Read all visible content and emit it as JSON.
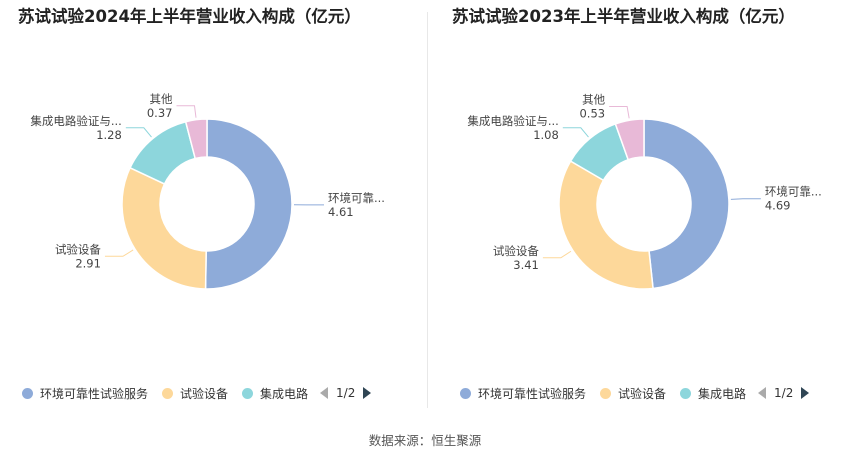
{
  "source": "数据来源：恒生聚源",
  "chart_data": [
    {
      "type": "pie",
      "variant": "donut",
      "title": "苏试试验2024年上半年营业收入构成（亿元）",
      "slices": [
        {
          "label": "环境可靠...",
          "value": 4.61,
          "color": "#8eabd9"
        },
        {
          "label": "试验设备",
          "value": 2.91,
          "color": "#fdd89a"
        },
        {
          "label": "集成电路验证与...",
          "value": 1.28,
          "color": "#8dd6dc"
        },
        {
          "label": "其他",
          "value": 0.37,
          "color": "#e8b9d7"
        }
      ],
      "legend": {
        "position": "bottom",
        "items": [
          {
            "label": "环境可靠性试验服务",
            "color": "#8eabd9"
          },
          {
            "label": "试验设备",
            "color": "#fdd89a"
          },
          {
            "label": "集成电路",
            "color": "#8dd6dc"
          }
        ],
        "page": "1/2"
      }
    },
    {
      "type": "pie",
      "variant": "donut",
      "title": "苏试试验2023年上半年营业收入构成（亿元）",
      "slices": [
        {
          "label": "环境可靠...",
          "value": 4.69,
          "color": "#8eabd9"
        },
        {
          "label": "试验设备",
          "value": 3.41,
          "color": "#fdd89a"
        },
        {
          "label": "集成电路验证与...",
          "value": 1.08,
          "color": "#8dd6dc"
        },
        {
          "label": "其他",
          "value": 0.53,
          "color": "#e8b9d7"
        }
      ],
      "legend": {
        "position": "bottom",
        "items": [
          {
            "label": "环境可靠性试验服务",
            "color": "#8eabd9"
          },
          {
            "label": "试验设备",
            "color": "#fdd89a"
          },
          {
            "label": "集成电路",
            "color": "#8dd6dc"
          }
        ],
        "page": "1/2"
      }
    }
  ]
}
